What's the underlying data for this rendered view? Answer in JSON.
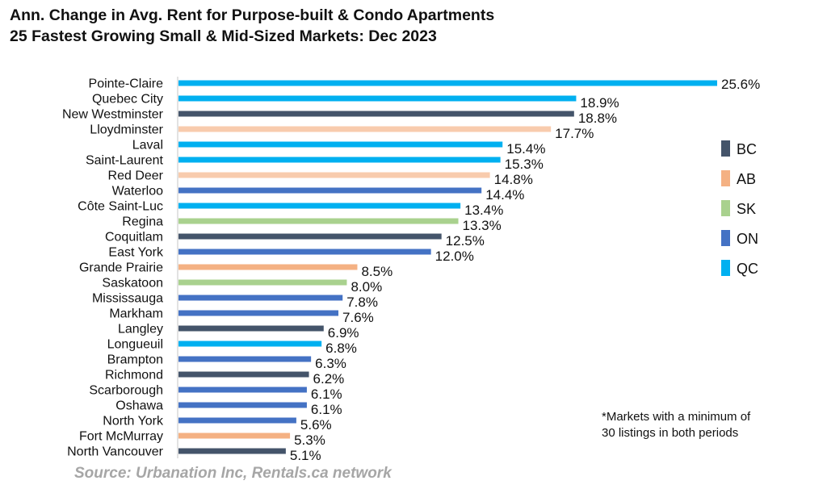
{
  "chart_data": {
    "type": "bar",
    "orientation": "horizontal",
    "title": "Ann. Change in Avg. Rent for Purpose-built & Condo Apartments",
    "subtitle": "25 Fastest Growing Small & Mid-Sized Markets: Dec 2023",
    "categories": [
      "Pointe-Claire",
      "Quebec City",
      "New Westminster",
      "Lloydminster",
      "Laval",
      "Saint-Laurent",
      "Red Deer",
      "Waterloo",
      "Côte Saint-Luc",
      "Regina",
      "Coquitlam",
      "East York",
      "Grande Prairie",
      "Saskatoon",
      "Mississauga",
      "Markham",
      "Langley",
      "Longueuil",
      "Brampton",
      "Richmond",
      "Scarborough",
      "Oshawa",
      "North York",
      "Fort McMurray",
      "North Vancouver"
    ],
    "values": [
      25.6,
      18.9,
      18.8,
      17.7,
      15.4,
      15.3,
      14.8,
      14.4,
      13.4,
      13.3,
      12.5,
      12.0,
      8.5,
      8.0,
      7.8,
      7.6,
      6.9,
      6.8,
      6.3,
      6.2,
      6.1,
      6.1,
      5.6,
      5.3,
      5.1
    ],
    "value_labels": [
      "25.6%",
      "18.9%",
      "18.8%",
      "17.7%",
      "15.4%",
      "15.3%",
      "14.8%",
      "14.4%",
      "13.4%",
      "13.3%",
      "12.5%",
      "12.0%",
      "8.5%",
      "8.0%",
      "7.8%",
      "7.6%",
      "6.9%",
      "6.8%",
      "6.3%",
      "6.2%",
      "6.1%",
      "6.1%",
      "5.6%",
      "5.3%",
      "5.1%"
    ],
    "bar_colors": [
      "#00B0F0",
      "#00B0F0",
      "#44546A",
      "#F8CBAD",
      "#00B0F0",
      "#00B0F0",
      "#F8CBAD",
      "#4472C4",
      "#00B0F0",
      "#A9D18E",
      "#44546A",
      "#4472C4",
      "#F4B183",
      "#A9D18E",
      "#4472C4",
      "#4472C4",
      "#44546A",
      "#00B0F0",
      "#4472C4",
      "#44546A",
      "#4472C4",
      "#4472C4",
      "#4472C4",
      "#F4B183",
      "#44546A"
    ],
    "xlim": [
      0,
      25.6
    ],
    "grid": false,
    "legend": {
      "placement": "right",
      "items": [
        {
          "label": "BC",
          "color": "#44546A"
        },
        {
          "label": "AB",
          "color": "#F4B183"
        },
        {
          "label": "SK",
          "color": "#A9D18E"
        },
        {
          "label": "ON",
          "color": "#4472C4"
        },
        {
          "label": "QC",
          "color": "#00B0F0"
        }
      ]
    },
    "note": [
      "*Markets with a minimum of",
      "30 listings in both periods"
    ],
    "source": "Source: Urbanation Inc, Rentals.ca network"
  }
}
